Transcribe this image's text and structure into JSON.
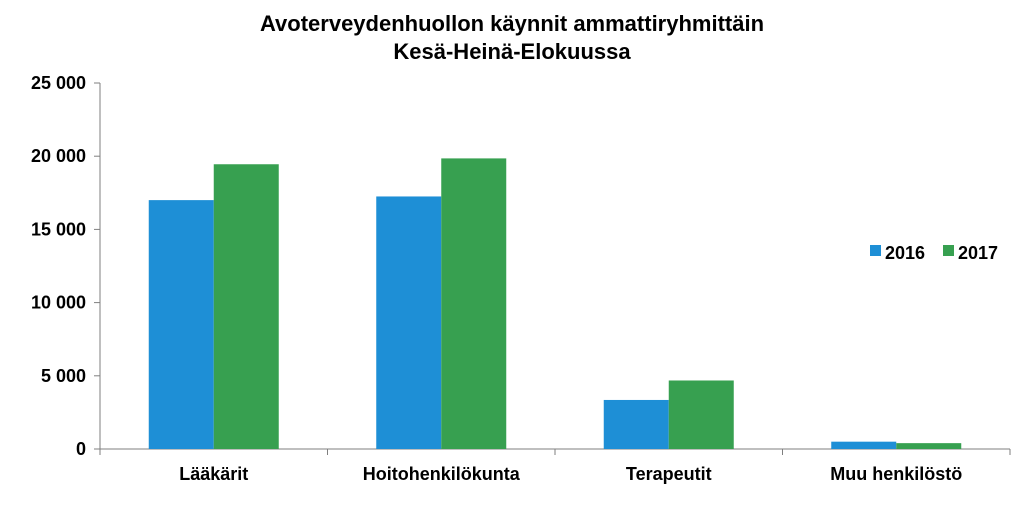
{
  "colors": {
    "s2016": "#1e8fd6",
    "s2017": "#37a050",
    "axis": "#7f7f7f"
  },
  "chart_data": {
    "type": "bar",
    "title": "Avoterveydenhuollon käynnit ammattiryhmittäin",
    "subtitle": "Kesä-Heinä-Elokuussa",
    "categories": [
      "Lääkärit",
      "Hoitohenkilökunta",
      "Terapeutit",
      "Muu henkilöstö"
    ],
    "series": [
      {
        "name": "2016",
        "values": [
          17000,
          17250,
          3350,
          500
        ]
      },
      {
        "name": "2017",
        "values": [
          19450,
          19850,
          4680,
          400
        ]
      }
    ],
    "ylim": [
      0,
      25000
    ],
    "yticks": [
      0,
      5000,
      10000,
      15000,
      20000,
      25000
    ],
    "ytick_labels": [
      "0",
      "5 000",
      "10 000",
      "15 000",
      "20 000",
      "25 000"
    ],
    "xlabel": "",
    "ylabel": "",
    "legend": "right",
    "grid": false
  }
}
